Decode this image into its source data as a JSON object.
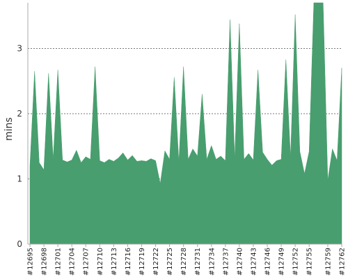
{
  "chart_data": {
    "type": "area",
    "title": "",
    "xlabel": "",
    "ylabel": "mins",
    "ylim": [
      0,
      3.7
    ],
    "yticks": [
      0,
      1,
      2,
      3
    ],
    "grid": "horizontal dashed",
    "legend": "none",
    "fill_color": "#489E6E",
    "grid_color": "#777777",
    "axis_color": "#aaaaaa",
    "x_tick_labels": [
      "#12695",
      "#12698",
      "#12701",
      "#12704",
      "#12707",
      "#12710",
      "#12713",
      "#12716",
      "#12719",
      "#12722",
      "#12725",
      "#12728",
      "#12731",
      "#12734",
      "#12737",
      "#12740",
      "#12743",
      "#12746",
      "#12749",
      "#12752",
      "#12755",
      "#12759",
      "#12762"
    ],
    "x_tick_builds": [
      12695,
      12698,
      12701,
      12704,
      12707,
      12710,
      12713,
      12716,
      12719,
      12722,
      12725,
      12728,
      12731,
      12734,
      12737,
      12740,
      12743,
      12746,
      12749,
      12752,
      12755,
      12759,
      12762
    ],
    "series": [
      {
        "x": [
          12695,
          12696,
          12697,
          12698,
          12699,
          12700,
          12701,
          12702,
          12703,
          12704,
          12705,
          12706,
          12707,
          12708,
          12709,
          12710,
          12711,
          12712,
          12713,
          12714,
          12715,
          12716,
          12717,
          12718,
          12719,
          12720,
          12721,
          12722,
          12723,
          12724,
          12725,
          12726,
          12727,
          12728,
          12729,
          12730,
          12731,
          12732,
          12733,
          12734,
          12735,
          12736,
          12737,
          12738,
          12739,
          12740,
          12741,
          12742,
          12743,
          12744,
          12745,
          12746,
          12747,
          12748,
          12749,
          12750,
          12751,
          12752,
          12753,
          12754,
          12755,
          12756,
          12757,
          12758,
          12759,
          12760,
          12761,
          12762
        ],
        "values": [
          1.2,
          2.65,
          1.25,
          1.14,
          2.62,
          1.3,
          2.67,
          1.29,
          1.26,
          1.29,
          1.44,
          1.25,
          1.34,
          1.3,
          2.72,
          1.28,
          1.25,
          1.3,
          1.27,
          1.32,
          1.4,
          1.29,
          1.36,
          1.27,
          1.28,
          1.27,
          1.31,
          1.28,
          0.93,
          1.43,
          1.3,
          2.56,
          1.26,
          2.72,
          1.3,
          1.46,
          1.35,
          2.3,
          1.3,
          1.51,
          1.3,
          1.35,
          1.28,
          3.44,
          1.31,
          3.38,
          1.3,
          1.39,
          1.29,
          2.67,
          1.41,
          1.3,
          1.21,
          1.28,
          1.3,
          2.83,
          1.33,
          3.52,
          1.42,
          1.08,
          1.42,
          3.7,
          3.7,
          3.7,
          0.98,
          1.46,
          1.28,
          2.7
        ]
      }
    ]
  }
}
